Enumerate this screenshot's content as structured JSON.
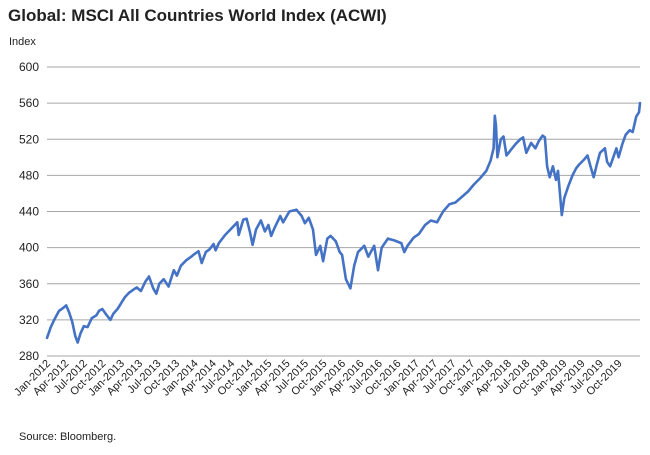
{
  "chart_data": {
    "type": "line",
    "title": "Global: MSCI All Countries World Index (ACWI)",
    "ylabel": "Index",
    "xlabel": "",
    "source": "Source: Bloomberg.",
    "ylim": [
      280,
      600
    ],
    "yticks": [
      280,
      320,
      360,
      400,
      440,
      480,
      520,
      560,
      600
    ],
    "xlim": [
      "2012-01-01",
      "2020-01-15"
    ],
    "xticks": [
      "2012-01-01",
      "2012-04-01",
      "2012-07-01",
      "2012-10-01",
      "2013-01-01",
      "2013-04-01",
      "2013-07-01",
      "2013-10-01",
      "2014-01-01",
      "2014-04-01",
      "2014-07-01",
      "2014-10-01",
      "2015-01-01",
      "2015-04-01",
      "2015-07-01",
      "2015-10-01",
      "2016-01-01",
      "2016-04-01",
      "2016-07-01",
      "2016-10-01",
      "2017-01-01",
      "2017-04-01",
      "2017-07-01",
      "2017-10-01",
      "2018-01-01",
      "2018-04-01",
      "2018-07-01",
      "2018-10-01",
      "2019-01-01",
      "2019-04-01",
      "2019-07-01",
      "2019-10-01"
    ],
    "xtick_labels": [
      "Jan-2012",
      "Apr-2012",
      "Jul-2012",
      "Oct-2012",
      "Jan-2013",
      "Apr-2013",
      "Jul-2013",
      "Oct-2013",
      "Jan-2014",
      "Apr-2014",
      "Jul-2014",
      "Oct-2014",
      "Jan-2015",
      "Apr-2015",
      "Jul-2015",
      "Oct-2015",
      "Jan-2016",
      "Apr-2016",
      "Jul-2016",
      "Oct-2016",
      "Jan-2017",
      "Apr-2017",
      "Jul-2017",
      "Oct-2017",
      "Jan-2018",
      "Apr-2018",
      "Jul-2018",
      "Oct-2018",
      "Jan-2019",
      "Apr-2019",
      "Jul-2019",
      "Oct-2019"
    ],
    "grid": "horizontal",
    "series": [
      {
        "color": "#4472c4",
        "points": [
          [
            "2012-01-01",
            300
          ],
          [
            "2012-01-20",
            312
          ],
          [
            "2012-02-10",
            322
          ],
          [
            "2012-03-01",
            330
          ],
          [
            "2012-03-20",
            333
          ],
          [
            "2012-04-05",
            336
          ],
          [
            "2012-04-20",
            328
          ],
          [
            "2012-05-05",
            318
          ],
          [
            "2012-05-20",
            302
          ],
          [
            "2012-06-01",
            295
          ],
          [
            "2012-06-15",
            305
          ],
          [
            "2012-07-01",
            313
          ],
          [
            "2012-07-20",
            312
          ],
          [
            "2012-08-10",
            322
          ],
          [
            "2012-09-01",
            325
          ],
          [
            "2012-09-15",
            330
          ],
          [
            "2012-10-01",
            332
          ],
          [
            "2012-10-20",
            326
          ],
          [
            "2012-11-10",
            320
          ],
          [
            "2012-11-25",
            327
          ],
          [
            "2012-12-15",
            332
          ],
          [
            "2013-01-01",
            338
          ],
          [
            "2013-01-20",
            345
          ],
          [
            "2013-02-10",
            350
          ],
          [
            "2013-03-01",
            353
          ],
          [
            "2013-03-20",
            356
          ],
          [
            "2013-04-10",
            352
          ],
          [
            "2013-05-01",
            362
          ],
          [
            "2013-05-20",
            368
          ],
          [
            "2013-06-10",
            355
          ],
          [
            "2013-06-25",
            349
          ],
          [
            "2013-07-10",
            360
          ],
          [
            "2013-08-01",
            365
          ],
          [
            "2013-08-25",
            357
          ],
          [
            "2013-09-20",
            375
          ],
          [
            "2013-10-05",
            369
          ],
          [
            "2013-10-25",
            380
          ],
          [
            "2013-11-20",
            386
          ],
          [
            "2013-12-15",
            390
          ],
          [
            "2014-01-01",
            393
          ],
          [
            "2014-01-20",
            396
          ],
          [
            "2014-02-05",
            383
          ],
          [
            "2014-02-25",
            395
          ],
          [
            "2014-03-15",
            398
          ],
          [
            "2014-04-05",
            404
          ],
          [
            "2014-04-15",
            397
          ],
          [
            "2014-05-01",
            405
          ],
          [
            "2014-06-01",
            414
          ],
          [
            "2014-07-01",
            421
          ],
          [
            "2014-07-31",
            428
          ],
          [
            "2014-08-07",
            414
          ],
          [
            "2014-08-30",
            431
          ],
          [
            "2014-09-15",
            432
          ],
          [
            "2014-10-01",
            418
          ],
          [
            "2014-10-15",
            403
          ],
          [
            "2014-11-01",
            420
          ],
          [
            "2014-11-25",
            430
          ],
          [
            "2014-12-15",
            418
          ],
          [
            "2015-01-01",
            425
          ],
          [
            "2015-01-15",
            413
          ],
          [
            "2015-02-01",
            422
          ],
          [
            "2015-03-01",
            435
          ],
          [
            "2015-03-15",
            428
          ],
          [
            "2015-04-15",
            440
          ],
          [
            "2015-05-20",
            442
          ],
          [
            "2015-06-15",
            435
          ],
          [
            "2015-07-01",
            427
          ],
          [
            "2015-07-20",
            433
          ],
          [
            "2015-08-10",
            420
          ],
          [
            "2015-08-25",
            392
          ],
          [
            "2015-09-15",
            402
          ],
          [
            "2015-09-29",
            385
          ],
          [
            "2015-10-20",
            410
          ],
          [
            "2015-11-05",
            413
          ],
          [
            "2015-12-01",
            407
          ],
          [
            "2015-12-20",
            395
          ],
          [
            "2016-01-01",
            392
          ],
          [
            "2016-01-20",
            365
          ],
          [
            "2016-02-11",
            355
          ],
          [
            "2016-03-01",
            380
          ],
          [
            "2016-03-20",
            395
          ],
          [
            "2016-04-20",
            402
          ],
          [
            "2016-05-10",
            390
          ],
          [
            "2016-06-08",
            402
          ],
          [
            "2016-06-27",
            375
          ],
          [
            "2016-07-15",
            400
          ],
          [
            "2016-08-15",
            410
          ],
          [
            "2016-09-15",
            408
          ],
          [
            "2016-10-20",
            405
          ],
          [
            "2016-11-04",
            395
          ],
          [
            "2016-11-20",
            402
          ],
          [
            "2016-12-20",
            411
          ],
          [
            "2017-01-15",
            415
          ],
          [
            "2017-02-15",
            425
          ],
          [
            "2017-03-15",
            430
          ],
          [
            "2017-04-15",
            428
          ],
          [
            "2017-05-15",
            440
          ],
          [
            "2017-06-15",
            448
          ],
          [
            "2017-07-15",
            450
          ],
          [
            "2017-08-15",
            456
          ],
          [
            "2017-09-15",
            462
          ],
          [
            "2017-10-15",
            470
          ],
          [
            "2017-11-15",
            477
          ],
          [
            "2017-12-15",
            485
          ],
          [
            "2018-01-05",
            496
          ],
          [
            "2018-01-20",
            510
          ],
          [
            "2018-01-26",
            546
          ],
          [
            "2018-02-01",
            535
          ],
          [
            "2018-02-08",
            500
          ],
          [
            "2018-02-25",
            520
          ],
          [
            "2018-03-10",
            523
          ],
          [
            "2018-03-25",
            502
          ],
          [
            "2018-04-15",
            508
          ],
          [
            "2018-05-10",
            515
          ],
          [
            "2018-06-01",
            520
          ],
          [
            "2018-06-15",
            522
          ],
          [
            "2018-07-01",
            505
          ],
          [
            "2018-07-25",
            516
          ],
          [
            "2018-08-15",
            510
          ],
          [
            "2018-09-01",
            518
          ],
          [
            "2018-09-20",
            524
          ],
          [
            "2018-10-01",
            522
          ],
          [
            "2018-10-12",
            490
          ],
          [
            "2018-10-25",
            478
          ],
          [
            "2018-11-10",
            490
          ],
          [
            "2018-11-25",
            475
          ],
          [
            "2018-12-05",
            485
          ],
          [
            "2018-12-24",
            436
          ],
          [
            "2019-01-05",
            455
          ],
          [
            "2019-01-25",
            468
          ],
          [
            "2019-02-15",
            480
          ],
          [
            "2019-03-05",
            488
          ],
          [
            "2019-03-20",
            492
          ],
          [
            "2019-04-15",
            498
          ],
          [
            "2019-04-30",
            502
          ],
          [
            "2019-05-15",
            490
          ],
          [
            "2019-05-31",
            478
          ],
          [
            "2019-06-15",
            492
          ],
          [
            "2019-07-01",
            505
          ],
          [
            "2019-07-25",
            510
          ],
          [
            "2019-08-05",
            495
          ],
          [
            "2019-08-20",
            490
          ],
          [
            "2019-09-05",
            500
          ],
          [
            "2019-09-20",
            510
          ],
          [
            "2019-10-01",
            500
          ],
          [
            "2019-10-20",
            515
          ],
          [
            "2019-11-05",
            525
          ],
          [
            "2019-11-25",
            530
          ],
          [
            "2019-12-10",
            528
          ],
          [
            "2019-12-27",
            545
          ],
          [
            "2020-01-10",
            550
          ],
          [
            "2020-01-15",
            560
          ]
        ]
      }
    ]
  }
}
